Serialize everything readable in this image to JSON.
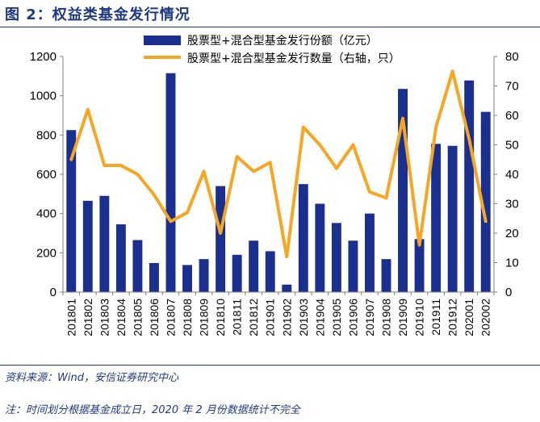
{
  "figure": {
    "title": "图 2：权益类基金发行情况",
    "source": "资料来源：Wind，安信证券研究中心",
    "note": "注：时间划分根据基金成立日，2020 年 2 月份数据统计不完全"
  },
  "chart_data": {
    "type": "bar+line",
    "categories": [
      "201801",
      "201802",
      "201803",
      "201804",
      "201805",
      "201806",
      "201807",
      "201808",
      "201809",
      "201810",
      "201811",
      "201812",
      "201901",
      "201902",
      "201903",
      "201904",
      "201905",
      "201906",
      "201907",
      "201908",
      "201909",
      "201910",
      "201911",
      "201912",
      "202001",
      "202002"
    ],
    "series": [
      {
        "name": "股票型+混合型基金发行份额（亿元）",
        "type": "bar",
        "axis": "left",
        "color": "#1B2F8F",
        "values": [
          825,
          465,
          490,
          345,
          265,
          148,
          1115,
          138,
          168,
          540,
          190,
          262,
          208,
          38,
          550,
          450,
          352,
          262,
          400,
          168,
          1035,
          270,
          755,
          745,
          1078,
          918
        ]
      },
      {
        "name": "股票型+混合型基金发行数量（右轴，只）",
        "type": "line",
        "axis": "right",
        "color": "#F5A623",
        "values": [
          45,
          62,
          43,
          43,
          40,
          33,
          24,
          27,
          41,
          20,
          46,
          41,
          44,
          12,
          56,
          50,
          42,
          50,
          34,
          32,
          59,
          16,
          56,
          75,
          52,
          24
        ]
      }
    ],
    "left_axis": {
      "min": 0,
      "max": 1200,
      "ticks": [
        0,
        200,
        400,
        600,
        800,
        1000,
        1200
      ]
    },
    "right_axis": {
      "min": 0,
      "max": 80,
      "ticks": [
        0,
        10,
        20,
        30,
        40,
        50,
        60,
        70,
        80
      ]
    },
    "legend_position": "top-center",
    "grid": false
  }
}
